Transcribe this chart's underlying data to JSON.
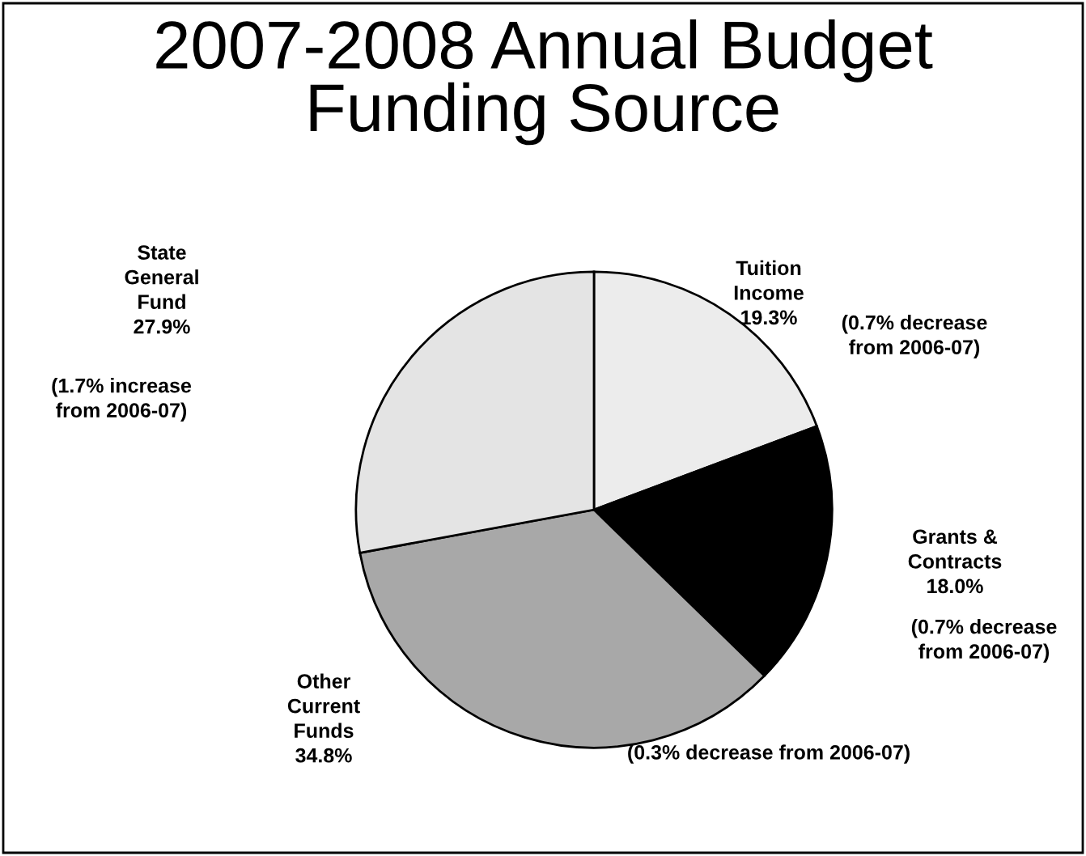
{
  "chart_data": {
    "type": "pie",
    "title": "2007-2008 Annual Budget\nFunding Source",
    "categories": [
      "Tuition\nIncome",
      "Grants &\nContracts",
      "Other\nCurrent\nFunds",
      "State\nGeneral\nFund"
    ],
    "values": [
      19.3,
      18.0,
      34.8,
      27.9
    ],
    "value_labels": [
      "19.3%",
      "18.0%",
      "34.8%",
      "27.9%"
    ],
    "colors": [
      "#ececec",
      "#000000",
      "#a8a8a8",
      "#e4e4e4"
    ],
    "annotations": [
      "(0.7% decrease\nfrom 2006-07)",
      "(0.7% decrease\nfrom 2006-07)",
      "(0.3% decrease from 2006-07)",
      "(1.7% increase\nfrom 2006-07)"
    ],
    "legend": false
  }
}
